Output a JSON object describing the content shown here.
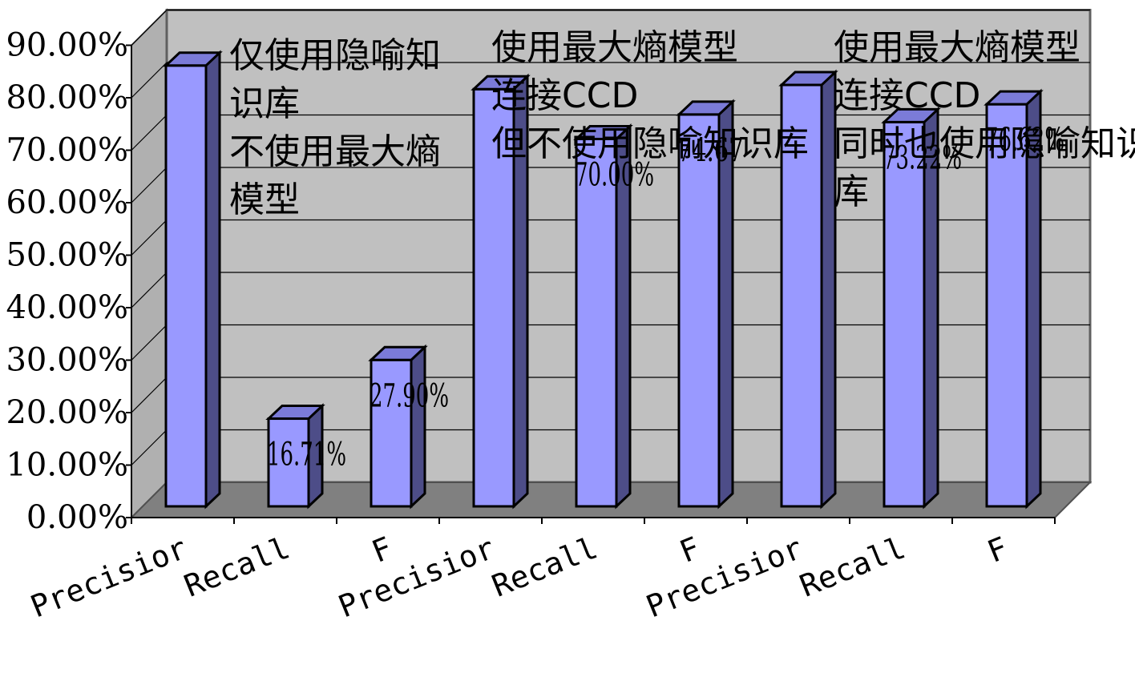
{
  "chart_data": {
    "type": "bar",
    "three_d": true,
    "categories": [
      "Precisior",
      "Recall",
      "F",
      "Precisior",
      "Recall",
      "F",
      "Precisior",
      "Recall",
      "F"
    ],
    "values": [
      84.0,
      16.71,
      27.9,
      79.5,
      70.0,
      74.67,
      80.3,
      73.22,
      76.62
    ],
    "data_labels": [
      "",
      "16.71%",
      "27.90%",
      "",
      "70.00%",
      "74.67",
      "",
      "73.22%",
      "76.62%"
    ],
    "y_ticks": [
      "0.00%",
      "10.00%",
      "20.00%",
      "30.00%",
      "40.00%",
      "50.00%",
      "60.00%",
      "70.00%",
      "80.00%",
      "90.00%"
    ],
    "ylim": [
      0,
      90
    ],
    "grid": true,
    "colors": {
      "bar_front": "#9999ff",
      "bar_top": "#7b7bd8",
      "bar_side": "#4d4d88",
      "back_wall": "#c0c0c0",
      "side_wall": "#b0b0b0",
      "floor": "#808080"
    },
    "annotations": [
      [
        "仅使用隐喻知",
        "识库",
        "不使用最大熵",
        "模型"
      ],
      [
        "使用最大熵模型",
        "连接CCD",
        "但不使用隐喻知识库"
      ],
      [
        "使用最大熵模型",
        "连接CCD",
        "同时也使用隐喻知识",
        "库"
      ]
    ]
  }
}
